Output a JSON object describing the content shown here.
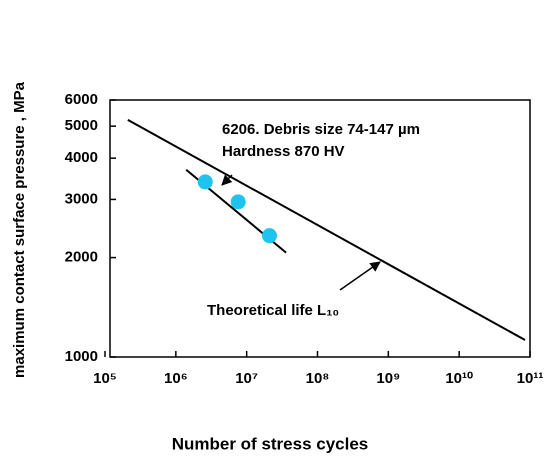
{
  "chart_data": {
    "type": "scatter",
    "ylabel": "maximum contact surface pressure , MPa",
    "xlabel": "Number of stress cycles",
    "xscale": "log",
    "yscale": "log",
    "xlim": [
      100000,
      100000000000
    ],
    "ylim": [
      1000,
      6000
    ],
    "xticks": [
      {
        "value": 100000,
        "label": "10⁵"
      },
      {
        "value": 1000000,
        "label": "10⁶"
      },
      {
        "value": 10000000,
        "label": "10⁷"
      },
      {
        "value": 100000000,
        "label": "10⁸"
      },
      {
        "value": 1000000000,
        "label": "10⁹"
      },
      {
        "value": 10000000000,
        "label": "10¹⁰"
      },
      {
        "value": 100000000000,
        "label": "10¹¹"
      }
    ],
    "yticks": [
      1000,
      2000,
      3000,
      4000,
      5000,
      6000
    ],
    "series": [
      {
        "mode": "markers",
        "color": "#1fc4ee",
        "x": [
          2600000,
          7600000,
          21000000
        ],
        "values": [
          3390,
          2950,
          2330
        ]
      },
      {
        "mode": "line",
        "color": "#000000",
        "x": [
          1400000,
          36000000
        ],
        "values": [
          3690,
          2070
        ]
      },
      {
        "mode": "line",
        "color": "#000000",
        "x": [
          210000,
          85000000000
        ],
        "values": [
          5224,
          1126
        ]
      }
    ],
    "annotations": [
      "6206. Debris size 74-147 µm",
      "Hardness 870 HV",
      "Theoretical life L₁₀"
    ]
  }
}
